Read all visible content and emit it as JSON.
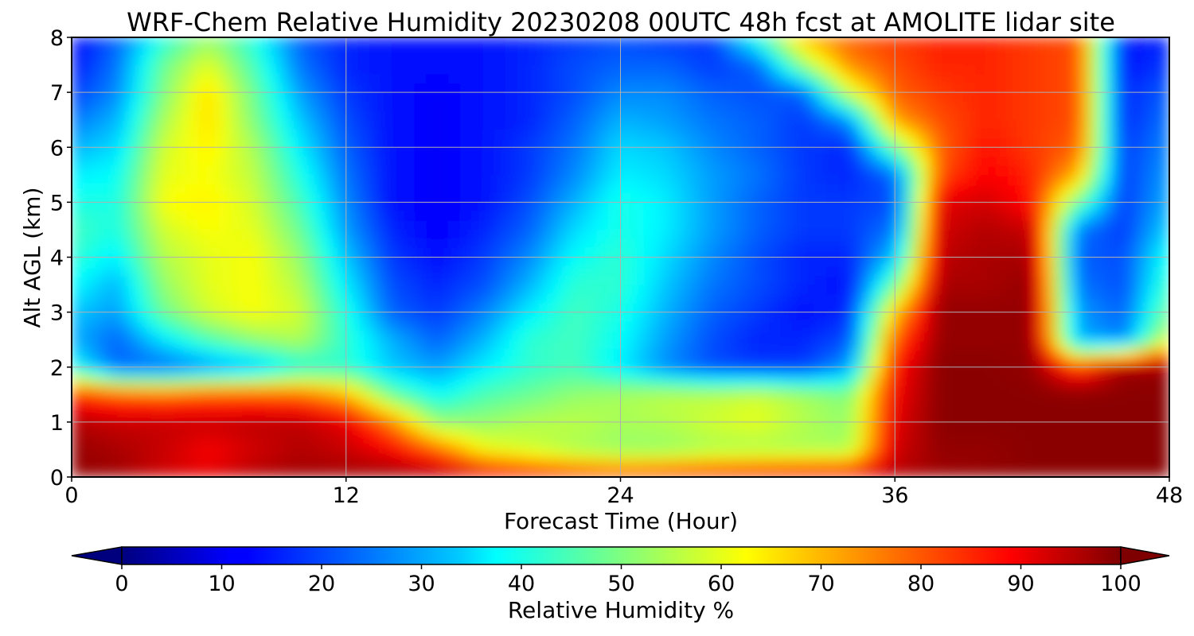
{
  "chart_data": {
    "type": "heatmap",
    "title": "WRF-Chem Relative Humidity 20230208 00UTC 48h fcst at AMOLITE lidar site",
    "xlabel": "Forecast Time (Hour)",
    "ylabel": "Alt AGL (km)",
    "xlim": [
      0,
      48
    ],
    "ylim": [
      0,
      8
    ],
    "x_ticks": [
      "0",
      "12",
      "24",
      "36",
      "48"
    ],
    "y_ticks": [
      "0",
      "1",
      "2",
      "3",
      "4",
      "5",
      "6",
      "7",
      "8"
    ],
    "grid": true,
    "colorbar": {
      "label": "Relative Humidity %",
      "orientation": "horizontal",
      "placement": "bottom",
      "range": [
        0,
        100
      ],
      "extend": "both",
      "colormap": "jet",
      "ticks": [
        "0",
        "10",
        "20",
        "30",
        "40",
        "50",
        "60",
        "70",
        "80",
        "90",
        "100"
      ]
    },
    "x": [
      0,
      2,
      4,
      6,
      8,
      10,
      12,
      14,
      16,
      18,
      20,
      22,
      24,
      26,
      28,
      30,
      32,
      34,
      36,
      38,
      40,
      42,
      44,
      46,
      48
    ],
    "y": [
      0,
      0.5,
      1,
      1.5,
      2,
      2.5,
      3,
      3.5,
      4,
      4.5,
      5,
      5.5,
      6,
      6.5,
      7,
      7.5,
      8
    ],
    "z": [
      [
        98,
        97,
        92,
        90,
        95,
        97,
        97,
        98,
        98,
        94,
        90,
        86,
        84,
        86,
        88,
        90,
        92,
        94,
        95,
        97,
        98,
        99,
        99,
        99,
        99
      ],
      [
        98,
        96,
        93,
        88,
        92,
        95,
        93,
        88,
        78,
        62,
        58,
        54,
        52,
        52,
        54,
        54,
        54,
        54,
        92,
        98,
        98,
        99,
        99,
        99,
        99
      ],
      [
        95,
        93,
        93,
        93,
        94,
        94,
        90,
        75,
        52,
        52,
        55,
        56,
        54,
        55,
        58,
        60,
        55,
        52,
        90,
        99,
        99,
        99,
        99,
        99,
        99
      ],
      [
        85,
        80,
        78,
        80,
        80,
        78,
        70,
        48,
        38,
        45,
        48,
        52,
        54,
        56,
        56,
        58,
        54,
        50,
        88,
        99,
        99,
        99,
        99,
        99,
        99
      ],
      [
        40,
        22,
        22,
        26,
        30,
        40,
        42,
        32,
        28,
        36,
        42,
        44,
        36,
        26,
        20,
        18,
        18,
        28,
        86,
        99,
        99,
        98,
        82,
        97,
        98
      ],
      [
        30,
        22,
        35,
        45,
        52,
        55,
        42,
        30,
        22,
        30,
        42,
        44,
        38,
        28,
        20,
        16,
        16,
        20,
        78,
        98,
        98,
        98,
        30,
        25,
        60
      ],
      [
        32,
        28,
        48,
        58,
        62,
        58,
        40,
        22,
        18,
        25,
        36,
        44,
        40,
        30,
        22,
        18,
        14,
        16,
        68,
        98,
        98,
        98,
        28,
        22,
        50
      ],
      [
        38,
        30,
        52,
        60,
        62,
        55,
        36,
        20,
        16,
        20,
        30,
        42,
        42,
        32,
        24,
        20,
        16,
        14,
        48,
        96,
        96,
        98,
        24,
        20,
        44
      ],
      [
        42,
        36,
        55,
        60,
        62,
        52,
        32,
        18,
        14,
        18,
        26,
        38,
        42,
        34,
        26,
        20,
        16,
        16,
        32,
        94,
        96,
        96,
        22,
        20,
        40
      ],
      [
        44,
        40,
        58,
        62,
        60,
        48,
        28,
        16,
        12,
        16,
        22,
        34,
        40,
        36,
        28,
        22,
        18,
        18,
        24,
        92,
        95,
        93,
        24,
        18,
        34
      ],
      [
        40,
        40,
        62,
        64,
        58,
        44,
        26,
        14,
        12,
        14,
        20,
        30,
        40,
        36,
        28,
        22,
        18,
        18,
        20,
        90,
        92,
        86,
        48,
        18,
        30
      ],
      [
        36,
        38,
        60,
        62,
        56,
        40,
        24,
        14,
        12,
        14,
        18,
        26,
        36,
        34,
        28,
        24,
        18,
        16,
        22,
        80,
        88,
        84,
        70,
        18,
        28
      ],
      [
        30,
        34,
        58,
        64,
        54,
        36,
        22,
        14,
        12,
        14,
        18,
        24,
        34,
        32,
        26,
        22,
        18,
        16,
        48,
        78,
        86,
        82,
        78,
        18,
        26
      ],
      [
        24,
        30,
        54,
        66,
        50,
        32,
        20,
        14,
        12,
        14,
        16,
        22,
        30,
        28,
        24,
        22,
        18,
        26,
        72,
        80,
        84,
        82,
        80,
        16,
        24
      ],
      [
        18,
        26,
        50,
        66,
        48,
        28,
        18,
        14,
        12,
        14,
        16,
        20,
        26,
        26,
        22,
        20,
        22,
        58,
        78,
        82,
        84,
        82,
        80,
        16,
        22
      ],
      [
        14,
        24,
        48,
        60,
        44,
        24,
        16,
        14,
        14,
        14,
        16,
        20,
        22,
        22,
        18,
        22,
        52,
        74,
        80,
        84,
        84,
        82,
        80,
        14,
        18
      ],
      [
        12,
        22,
        40,
        52,
        40,
        22,
        16,
        14,
        14,
        14,
        16,
        18,
        20,
        18,
        18,
        42,
        70,
        78,
        82,
        84,
        84,
        82,
        80,
        14,
        16
      ]
    ]
  }
}
